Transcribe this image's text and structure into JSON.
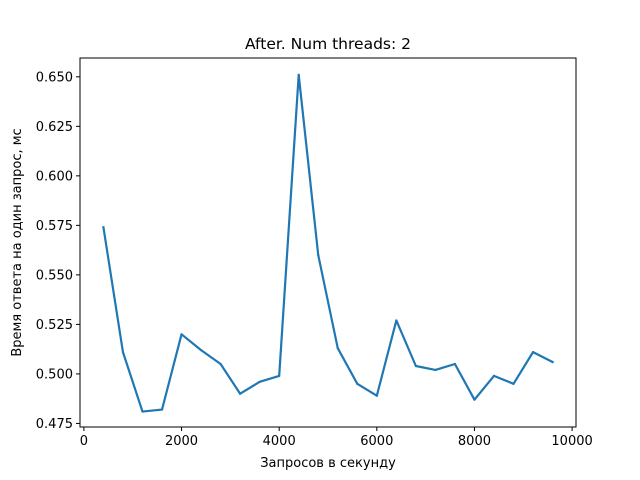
{
  "chart_data": {
    "type": "line",
    "title": "After. Num threads: 2",
    "xlabel": "Запросов в секунду",
    "ylabel": "Время ответа на один запрос, мс",
    "xlim": [
      -80,
      10080
    ],
    "ylim": [
      0.4732,
      0.6595
    ],
    "xticks": [
      0,
      2000,
      4000,
      6000,
      8000,
      10000
    ],
    "yticks": [
      0.475,
      0.5,
      0.525,
      0.55,
      0.575,
      0.6,
      0.625,
      0.65
    ],
    "ytick_labels": [
      "0.475",
      "0.500",
      "0.525",
      "0.550",
      "0.575",
      "0.600",
      "0.625",
      "0.650"
    ],
    "grid": false,
    "line_color": "#1f77b4",
    "series": [
      {
        "x": [
          400,
          800,
          1200,
          1600,
          2000,
          2400,
          2800,
          3200,
          3600,
          4000,
          4400,
          4800,
          5200,
          5600,
          6000,
          6400,
          6800,
          7200,
          7600,
          8000,
          8400,
          8800,
          9200,
          9600
        ],
        "y": [
          0.574,
          0.511,
          0.481,
          0.482,
          0.52,
          0.512,
          0.505,
          0.49,
          0.496,
          0.499,
          0.651,
          0.56,
          0.513,
          0.495,
          0.489,
          0.527,
          0.504,
          0.502,
          0.505,
          0.487,
          0.499,
          0.495,
          0.511,
          0.506
        ]
      }
    ]
  }
}
